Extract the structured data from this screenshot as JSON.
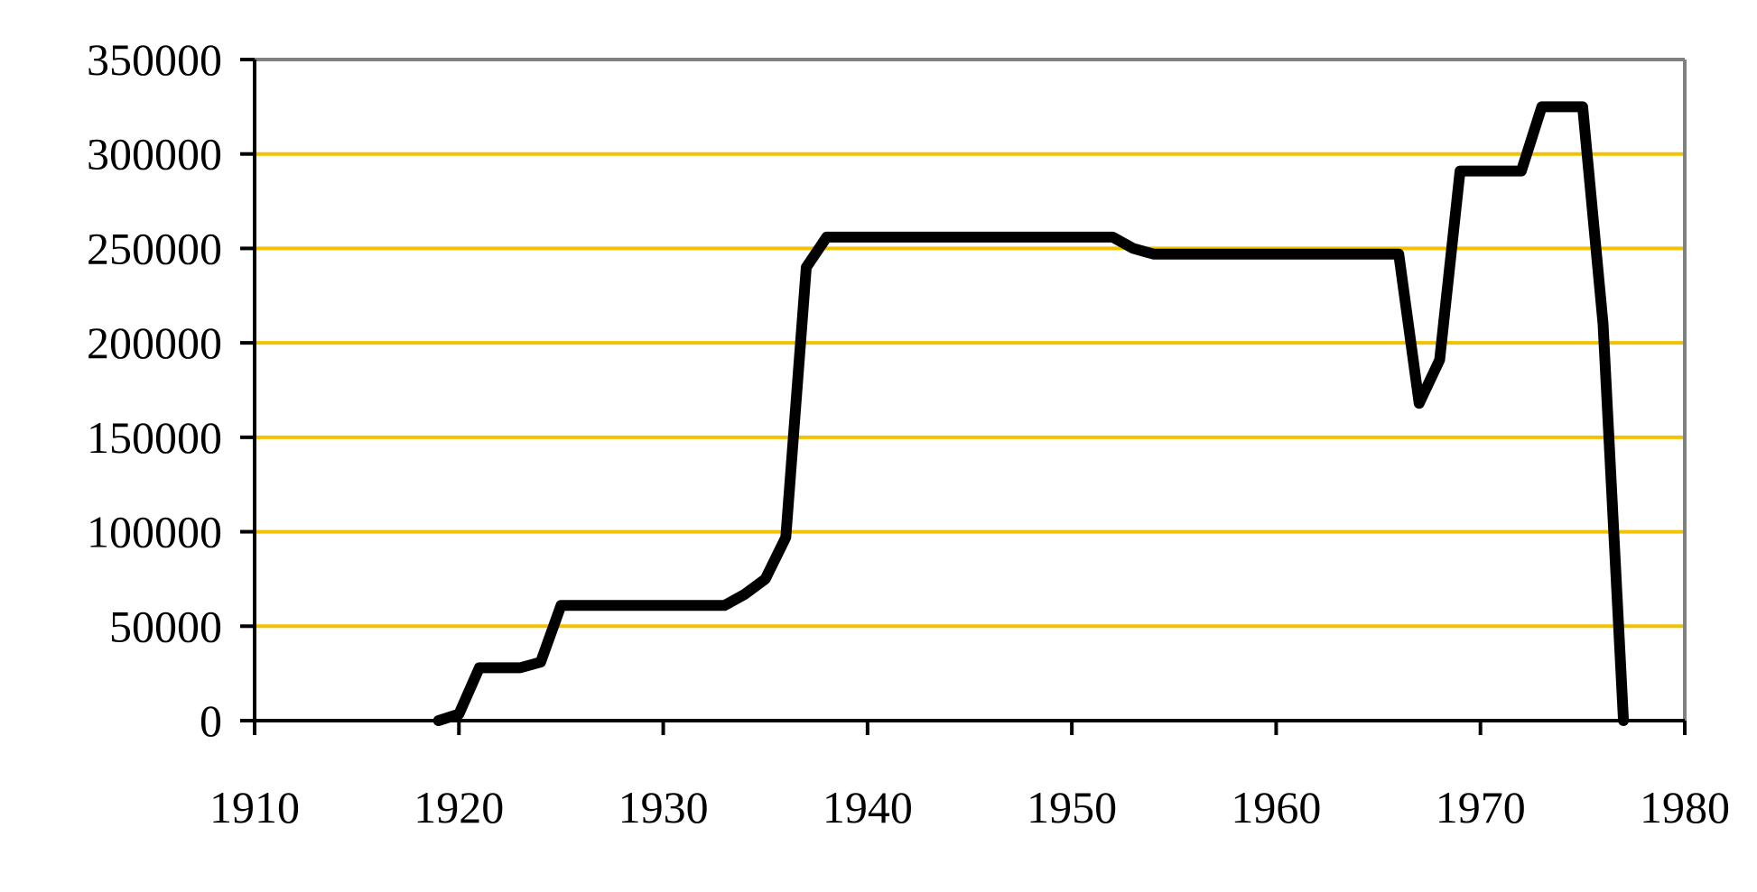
{
  "chart_data": {
    "type": "line",
    "title": "",
    "xlabel": "",
    "ylabel": "",
    "xlim": [
      1910,
      1980
    ],
    "ylim": [
      0,
      350000
    ],
    "x_ticks": [
      1910,
      1920,
      1930,
      1940,
      1950,
      1960,
      1970,
      1980
    ],
    "y_ticks": [
      0,
      50000,
      100000,
      150000,
      200000,
      250000,
      300000,
      350000
    ],
    "x_tick_labels": [
      "1910",
      "1920",
      "1930",
      "1940",
      "1950",
      "1960",
      "1970",
      "1980"
    ],
    "y_tick_labels": [
      "0",
      "50000",
      "100000",
      "150000",
      "200000",
      "250000",
      "300000",
      "350000"
    ],
    "grid": "horizontal",
    "gridline_color": "#F2C200",
    "line_color": "#000000",
    "frame_color": "#808080",
    "series": [
      {
        "x": [
          1919,
          1920,
          1921,
          1922,
          1923,
          1924,
          1925,
          1926,
          1927,
          1928,
          1929,
          1930,
          1931,
          1932,
          1933,
          1934,
          1935,
          1936,
          1937,
          1938,
          1939,
          1940,
          1945,
          1950,
          1952,
          1953,
          1954,
          1955,
          1960,
          1965,
          1966,
          1967,
          1968,
          1969,
          1970,
          1971,
          1972,
          1973,
          1974,
          1975,
          1976,
          1977
        ],
        "y": [
          0,
          3500,
          28000,
          28000,
          28000,
          31000,
          61000,
          61000,
          61000,
          61000,
          61000,
          61000,
          61000,
          61000,
          61000,
          67000,
          75000,
          97000,
          240000,
          256000,
          256000,
          256000,
          256000,
          256000,
          256000,
          250000,
          247000,
          247000,
          247000,
          247000,
          247000,
          168000,
          191000,
          291000,
          291000,
          291000,
          291000,
          325000,
          325000,
          325000,
          210000,
          0
        ]
      }
    ]
  }
}
